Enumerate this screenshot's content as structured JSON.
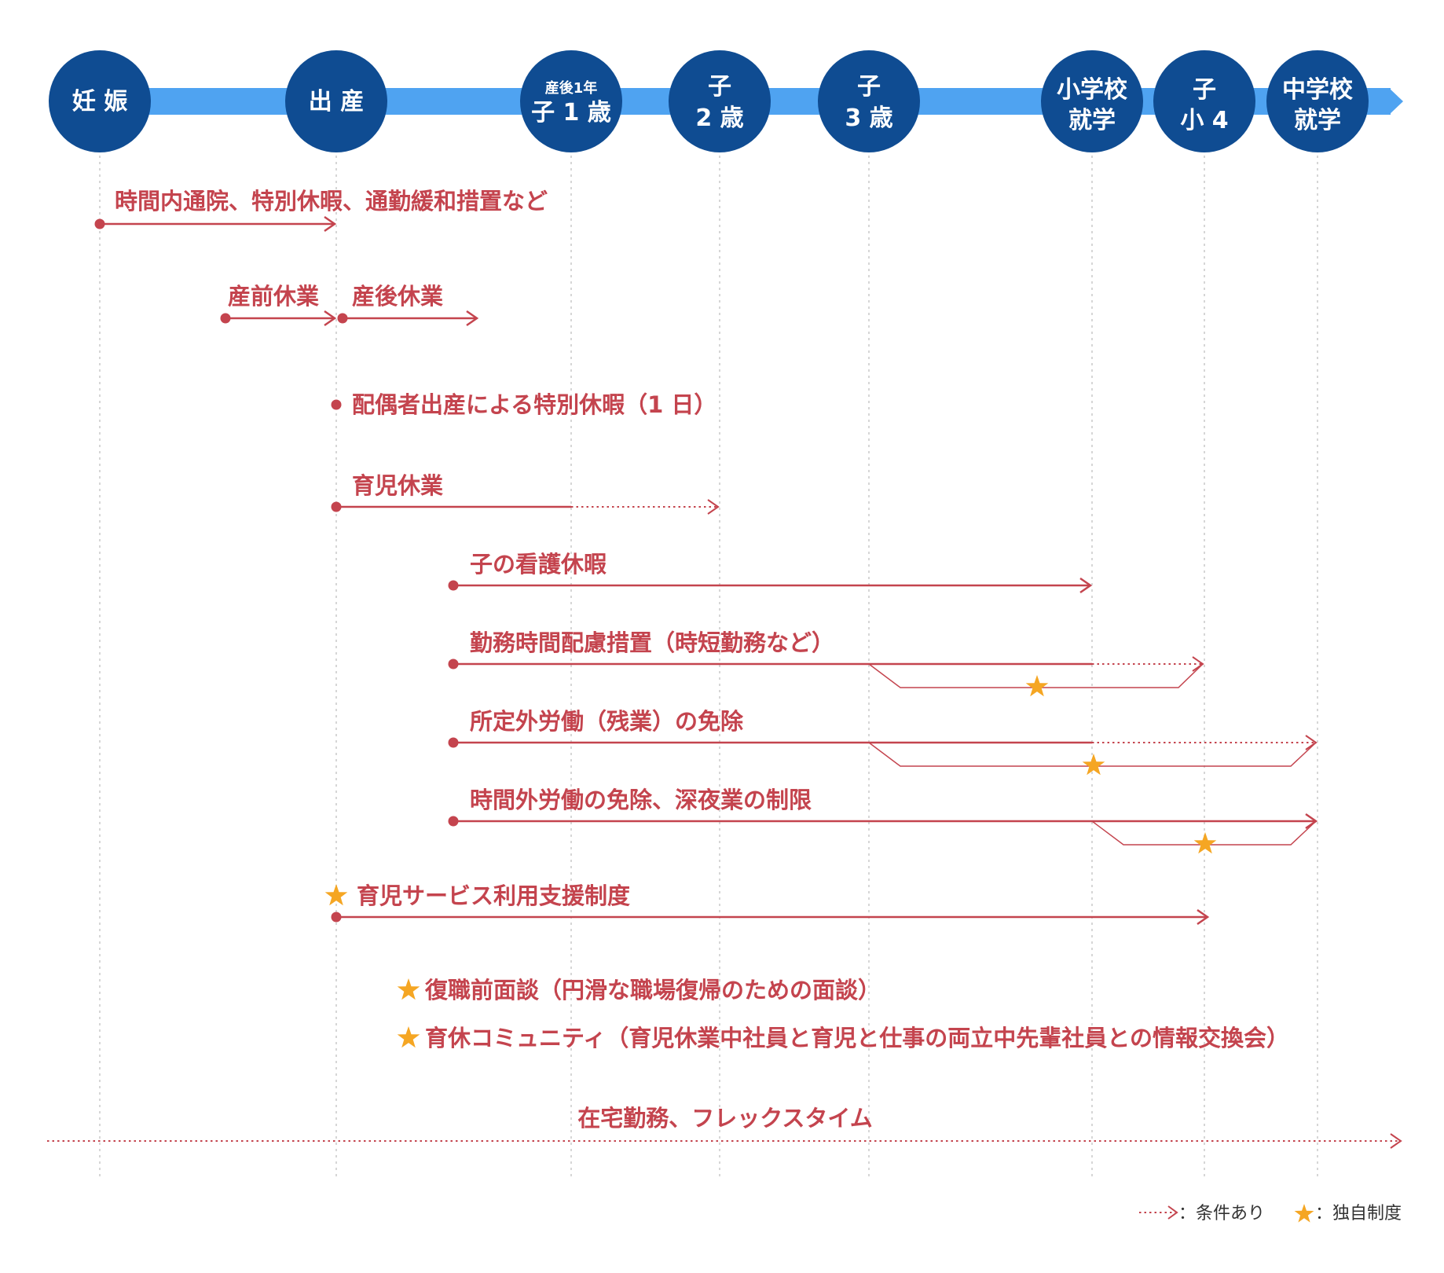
{
  "colors": {
    "timeline": "#4fa3f1",
    "milestone": "#0f4c92",
    "bar": "#c4444e",
    "star": "#f5a623",
    "guide": "#c8c8c8"
  },
  "milestones": [
    {
      "lines": [
        "妊 娠"
      ]
    },
    {
      "lines": [
        "出 産"
      ]
    },
    {
      "sub": "産後1年",
      "lines": [
        "子 1 歳"
      ]
    },
    {
      "lines": [
        "子",
        "2 歳"
      ]
    },
    {
      "lines": [
        "子",
        "3 歳"
      ]
    },
    {
      "lines": [
        "小学校",
        "就学"
      ]
    },
    {
      "lines": [
        "子",
        "小 4"
      ]
    },
    {
      "lines": [
        "中学校",
        "就学"
      ]
    }
  ],
  "bars": [
    {
      "label": "時間内通院、特別休暇、通勤緩和措置など"
    },
    {
      "label": "産前休業"
    },
    {
      "label": "産後休業"
    },
    {
      "label": "配偶者出産による特別休暇（1 日）"
    },
    {
      "label": "育児休業"
    },
    {
      "label": "子の看護休暇"
    },
    {
      "label": "勤務時間配慮措置（時短勤務など）"
    },
    {
      "label": "所定外労働（残業）の免除"
    },
    {
      "label": "時間外労働の免除、深夜業の制限"
    },
    {
      "label": "育児サービス利用支援制度"
    },
    {
      "label": "在宅勤務、フレックスタイム"
    }
  ],
  "notes": [
    {
      "label": "復職前面談（円滑な職場復帰のための面談）"
    },
    {
      "label": "育休コミュニティ（育児休業中社員と育児と仕事の両立中先輩社員との情報交換会）"
    }
  ],
  "legend": {
    "conditional": "：条件あり",
    "original": "：独自制度"
  }
}
